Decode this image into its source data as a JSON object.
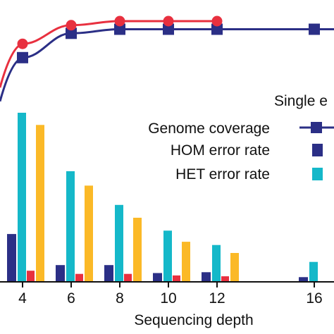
{
  "chart_data": {
    "type": "bar",
    "xlabel": "Sequencing depth",
    "x_ticks": [
      4,
      6,
      8,
      10,
      12,
      16
    ],
    "colors": {
      "coverage_single": "#2b2f86",
      "coverage_other": "#e8303f",
      "hom": "#2b2f86",
      "het": "#15b8c9",
      "third_bar": "#e8303f",
      "fourth_bar": "#fbb927",
      "axis": "#111111"
    },
    "legend": {
      "header": "Single e",
      "entries": [
        {
          "label": "Genome coverage",
          "marker": "line-square",
          "color": "#2b2f86"
        },
        {
          "label": "HOM error rate",
          "marker": "square",
          "color": "#2b2f86"
        },
        {
          "label": "HET error rate",
          "marker": "square",
          "color": "#15b8c9"
        }
      ]
    },
    "bar_groups": [
      {
        "x": 4,
        "values": [
          0.283,
          1.0,
          0.066,
          0.928
        ]
      },
      {
        "x": 6,
        "values": [
          0.099,
          0.654,
          0.047,
          0.569
        ]
      },
      {
        "x": 8,
        "values": [
          0.099,
          0.455,
          0.047,
          0.379
        ]
      },
      {
        "x": 10,
        "values": [
          0.052,
          0.303,
          0.038,
          0.237
        ]
      },
      {
        "x": 12,
        "values": [
          0.057,
          0.218,
          0.033,
          0.171
        ]
      },
      {
        "x": 16,
        "values": [
          0.028,
          0.118
        ]
      }
    ],
    "coverage_lines": [
      {
        "marker": "square",
        "color": "#2b2f86",
        "points": [
          {
            "x": 4,
            "y": 0.955
          },
          {
            "x": 6,
            "y": 0.985
          },
          {
            "x": 8,
            "y": 0.99
          },
          {
            "x": 10,
            "y": 0.99
          },
          {
            "x": 12,
            "y": 0.99
          },
          {
            "x": 16,
            "y": 0.99
          }
        ]
      },
      {
        "marker": "circle",
        "color": "#e8303f",
        "points": [
          {
            "x": 4,
            "y": 0.972
          },
          {
            "x": 6,
            "y": 0.995
          },
          {
            "x": 8,
            "y": 1.0
          },
          {
            "x": 10,
            "y": 1.0
          },
          {
            "x": 12,
            "y": 1.0
          }
        ]
      }
    ]
  }
}
